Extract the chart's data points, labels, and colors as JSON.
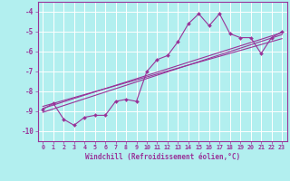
{
  "xlabel": "Windchill (Refroidissement éolien,°C)",
  "bg_color": "#b2efef",
  "grid_color": "#c8e8e8",
  "line_color": "#993399",
  "xlim": [
    -0.5,
    23.5
  ],
  "ylim": [
    -10.5,
    -3.5
  ],
  "xticks": [
    0,
    1,
    2,
    3,
    4,
    5,
    6,
    7,
    8,
    9,
    10,
    11,
    12,
    13,
    14,
    15,
    16,
    17,
    18,
    19,
    20,
    21,
    22,
    23
  ],
  "yticks": [
    -10,
    -9,
    -8,
    -7,
    -6,
    -5,
    -4
  ],
  "series_main": [
    [
      0,
      -8.9
    ],
    [
      1,
      -8.6
    ],
    [
      2,
      -9.4
    ],
    [
      3,
      -9.7
    ],
    [
      4,
      -9.3
    ],
    [
      5,
      -9.2
    ],
    [
      6,
      -9.2
    ],
    [
      7,
      -8.5
    ],
    [
      8,
      -8.4
    ],
    [
      9,
      -8.5
    ],
    [
      10,
      -7.0
    ],
    [
      11,
      -6.4
    ],
    [
      12,
      -6.2
    ],
    [
      13,
      -5.5
    ],
    [
      14,
      -4.6
    ],
    [
      15,
      -4.1
    ],
    [
      16,
      -4.7
    ],
    [
      17,
      -4.1
    ],
    [
      18,
      -5.1
    ],
    [
      19,
      -5.3
    ],
    [
      20,
      -5.3
    ],
    [
      21,
      -6.1
    ],
    [
      22,
      -5.3
    ],
    [
      23,
      -5.0
    ]
  ],
  "linear_lines": [
    {
      "x0": 0,
      "y0": -9.05,
      "x1": 23,
      "y1": -5.15
    },
    {
      "x0": 0,
      "y0": -8.85,
      "x1": 23,
      "y1": -5.05
    },
    {
      "x0": 0,
      "y0": -8.75,
      "x1": 23,
      "y1": -5.35
    }
  ]
}
